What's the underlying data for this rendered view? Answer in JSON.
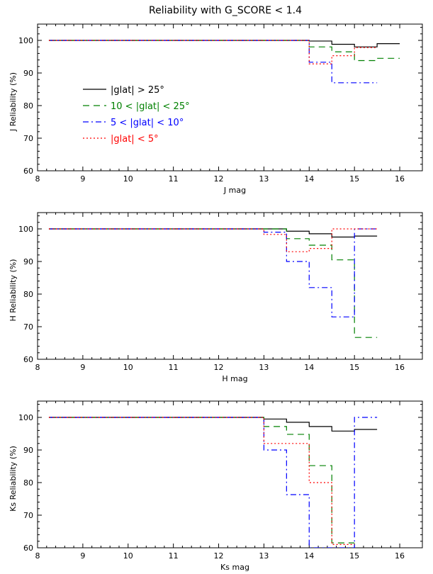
{
  "figure": {
    "title": "Reliability with G_SCORE < 1.4"
  },
  "legend": {
    "placement": "upper-left of top panel",
    "entries": [
      {
        "key": "hi",
        "label": "|glat| > 25°",
        "color": "#000000",
        "style": "solid"
      },
      {
        "key": "mid",
        "label": "10 < |glat| < 25°",
        "color": "#008000",
        "style": "dashed"
      },
      {
        "key": "lowmid",
        "label": "5 < |glat| < 10°",
        "color": "#0000ff",
        "style": "dashdot"
      },
      {
        "key": "low",
        "label": "|glat| < 5°",
        "color": "#ff0000",
        "style": "dotted"
      }
    ]
  },
  "chart_data": [
    {
      "type": "line",
      "step": true,
      "xlabel": "J mag",
      "ylabel": "J Reliability (%)",
      "xlim": [
        8,
        16.5
      ],
      "ylim": [
        60,
        105
      ],
      "xticks": [
        8,
        9,
        10,
        11,
        12,
        13,
        14,
        15,
        16
      ],
      "yticks": [
        60,
        70,
        80,
        90,
        100
      ],
      "series": [
        {
          "name": "|glat| > 25°",
          "color": "#000000",
          "style": "solid",
          "x": [
            8.25,
            13.5,
            14.0,
            14.5,
            15.0,
            15.5,
            16.0
          ],
          "values": [
            100,
            100,
            99.8,
            98.8,
            98.0,
            99.0,
            99.0
          ]
        },
        {
          "name": "10 < |glat| < 25°",
          "color": "#008000",
          "style": "dashed",
          "x": [
            8.25,
            13.5,
            14.0,
            14.5,
            15.0,
            15.5,
            16.0
          ],
          "values": [
            100,
            100,
            98.0,
            96.5,
            93.8,
            94.5,
            94.5
          ]
        },
        {
          "name": "5 < |glat| < 10°",
          "color": "#0000ff",
          "style": "dashdot",
          "x": [
            8.25,
            13.5,
            14.0,
            14.5,
            15.0,
            15.5
          ],
          "values": [
            100,
            100,
            93.3,
            87.0,
            87.0,
            87.0
          ]
        },
        {
          "name": "|glat| < 5°",
          "color": "#ff0000",
          "style": "dotted",
          "x": [
            8.25,
            13.5,
            14.0,
            14.5,
            15.0,
            15.5
          ],
          "values": [
            100,
            100,
            92.8,
            95.3,
            97.8,
            97.8
          ]
        }
      ]
    },
    {
      "type": "line",
      "step": true,
      "xlabel": "H mag",
      "ylabel": "H Reliability (%)",
      "xlim": [
        8,
        16.5
      ],
      "ylim": [
        60,
        105
      ],
      "xticks": [
        8,
        9,
        10,
        11,
        12,
        13,
        14,
        15,
        16
      ],
      "yticks": [
        60,
        70,
        80,
        90,
        100
      ],
      "series": [
        {
          "name": "|glat| > 25°",
          "color": "#000000",
          "style": "solid",
          "x": [
            8.25,
            13.0,
            13.5,
            14.0,
            14.5,
            15.0,
            15.5
          ],
          "values": [
            100,
            100,
            99.3,
            98.5,
            97.5,
            97.8,
            97.8
          ]
        },
        {
          "name": "10 < |glat| < 25°",
          "color": "#008000",
          "style": "dashed",
          "x": [
            8.25,
            13.0,
            13.5,
            14.0,
            14.5,
            15.0,
            15.5
          ],
          "values": [
            100,
            100,
            97.0,
            95.0,
            90.5,
            66.7,
            66.7
          ]
        },
        {
          "name": "5 < |glat| < 10°",
          "color": "#0000ff",
          "style": "dashdot",
          "x": [
            8.25,
            13.0,
            13.5,
            14.0,
            14.5,
            15.0,
            15.5
          ],
          "values": [
            100,
            99.0,
            90.0,
            82.0,
            73.0,
            100,
            100
          ]
        },
        {
          "name": "|glat| < 5°",
          "color": "#ff0000",
          "style": "dotted",
          "x": [
            8.25,
            13.0,
            13.5,
            14.0,
            14.5,
            15.0,
            15.5
          ],
          "values": [
            100,
            98.3,
            93.0,
            94.0,
            100,
            100,
            100
          ]
        }
      ]
    },
    {
      "type": "line",
      "step": true,
      "xlabel": "Ks mag",
      "ylabel": "Ks Reliability (%)",
      "xlim": [
        8,
        16.5
      ],
      "ylim": [
        60,
        105
      ],
      "xticks": [
        8,
        9,
        10,
        11,
        12,
        13,
        14,
        15,
        16
      ],
      "yticks": [
        60,
        70,
        80,
        90,
        100
      ],
      "series": [
        {
          "name": "|glat| > 25°",
          "color": "#000000",
          "style": "solid",
          "x": [
            8.25,
            13.0,
            13.5,
            14.0,
            14.5,
            15.0,
            15.5
          ],
          "values": [
            100,
            99.5,
            98.5,
            97.2,
            95.8,
            96.3,
            96.3
          ]
        },
        {
          "name": "10 < |glat| < 25°",
          "color": "#008000",
          "style": "dashed",
          "x": [
            8.25,
            13.0,
            13.5,
            14.0,
            14.5,
            15.0
          ],
          "values": [
            100,
            97.2,
            94.8,
            85.2,
            61.5,
            61.5
          ]
        },
        {
          "name": "5 < |glat| < 10°",
          "color": "#0000ff",
          "style": "dashdot",
          "x": [
            8.25,
            13.0,
            13.5,
            14.0,
            14.5,
            15.0,
            15.5
          ],
          "values": [
            100,
            90.0,
            76.3,
            60.0,
            60.0,
            100,
            100
          ]
        },
        {
          "name": "|glat| < 5°",
          "color": "#ff0000",
          "style": "dotted",
          "x": [
            8.25,
            13.0,
            13.5,
            14.0,
            14.5,
            15.0
          ],
          "values": [
            100,
            92.0,
            92.0,
            80.0,
            61.0,
            61.0
          ]
        }
      ]
    }
  ]
}
